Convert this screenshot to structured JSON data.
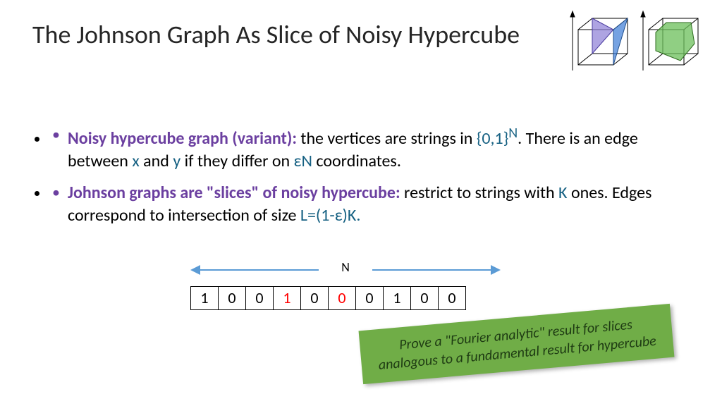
{
  "title": "The Johnson Graph As Slice of Noisy Hypercube",
  "bullets": [
    {
      "bold": "Noisy hypercube graph (variant):",
      "rest_parts": [
        {
          "t": " the vertices are strings in ",
          "c": "black"
        },
        {
          "t": "{0,1}",
          "c": "blue"
        },
        {
          "t": "N",
          "c": "blue",
          "sup": true
        },
        {
          "t": ". There is an edge between ",
          "c": "black"
        },
        {
          "t": "x",
          "c": "blue"
        },
        {
          "t": " and ",
          "c": "black"
        },
        {
          "t": "y",
          "c": "blue"
        },
        {
          "t": " if they differ on ",
          "c": "black"
        },
        {
          "t": "εN",
          "c": "blue"
        },
        {
          "t": " coordinates.",
          "c": "black"
        }
      ]
    },
    {
      "bold": "Johnson graphs are \"slices\" of noisy hypercube:",
      "rest_parts": [
        {
          "t": " restrict to strings with ",
          "c": "black"
        },
        {
          "t": "K",
          "c": "blue"
        },
        {
          "t": " ones. Edges correspond to intersection of size ",
          "c": "black"
        },
        {
          "t": "L=(1-ε)K.",
          "c": "blue"
        }
      ]
    }
  ],
  "bits": {
    "label": "N",
    "cells": [
      {
        "v": "1",
        "c": "black"
      },
      {
        "v": "0",
        "c": "black"
      },
      {
        "v": "0",
        "c": "black"
      },
      {
        "v": "1",
        "c": "red"
      },
      {
        "v": "0",
        "c": "black"
      },
      {
        "v": "0",
        "c": "red"
      },
      {
        "v": "0",
        "c": "black"
      },
      {
        "v": "1",
        "c": "black"
      },
      {
        "v": "0",
        "c": "black"
      },
      {
        "v": "0",
        "c": "black"
      }
    ]
  },
  "callout": {
    "line1": "Prove a \"Fourier analytic\" result for slices",
    "line2": "analogous to a fundamental result for hypercube"
  },
  "colors": {
    "purple": "#6b3fa0",
    "blue": "#156082",
    "arrow": "#5b9bd5",
    "callout_bg": "#70ad47"
  }
}
